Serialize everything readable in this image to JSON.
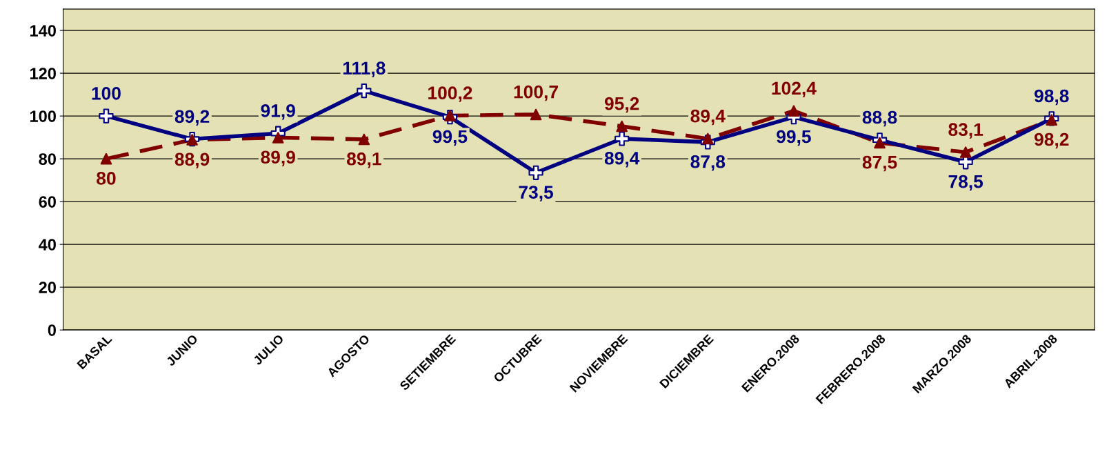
{
  "chart_data": {
    "type": "line",
    "categories": [
      "BASAL",
      "JUNIO",
      "JULIO",
      "AGOSTO",
      "SETIEMBRE",
      "OCTUBRE",
      "NOVIEMBRE",
      "DICIEMBRE",
      "ENERO.2008",
      "FEBRERO.2008",
      "MARZO.2008",
      "ABRIL.2008"
    ],
    "series": [
      {
        "color": "#000080",
        "marker": "cross",
        "line_style": "solid",
        "values": [
          100,
          89.2,
          91.9,
          111.8,
          99.5,
          73.5,
          89.4,
          87.8,
          99.5,
          88.8,
          78.5,
          98.8
        ],
        "value_labels": [
          "100",
          "89,2",
          "91,9",
          "111,8",
          "99,5",
          "73,5",
          "89,4",
          "87,8",
          "99,5",
          "88,8",
          "78,5",
          "98,8"
        ]
      },
      {
        "color": "#800000",
        "marker": "triangle",
        "line_style": "dashed",
        "values": [
          80,
          88.9,
          89.9,
          89.1,
          100.2,
          100.7,
          95.2,
          89.4,
          102.4,
          87.5,
          83.1,
          98.2
        ],
        "value_labels": [
          "80",
          "88,9",
          "89,9",
          "89,1",
          "100,2",
          "100,7",
          "95,2",
          "89,4",
          "102,4",
          "87,5",
          "83,1",
          "98,2"
        ]
      }
    ],
    "ylim": [
      0,
      150
    ],
    "yticks": [
      0,
      20,
      40,
      60,
      80,
      100,
      120,
      140
    ],
    "grid": "y",
    "legend": false
  }
}
